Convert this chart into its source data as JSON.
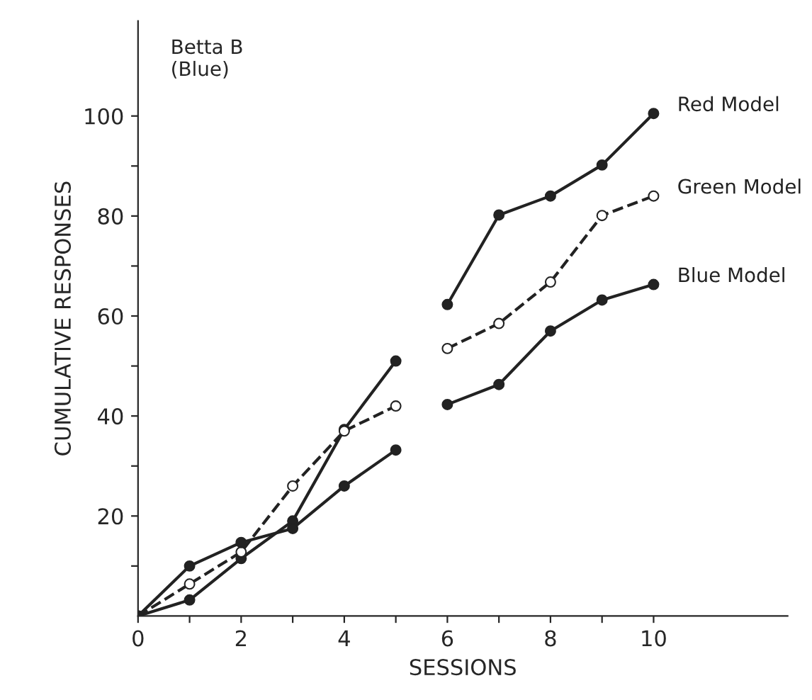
{
  "chart_data": {
    "type": "line",
    "title": "Betta B\n(Blue)",
    "xlabel": "SESSIONS",
    "ylabel": "CUMULATIVE RESPONSES",
    "series": [
      {
        "color": "#222222",
        "line_style": "solid",
        "marker": "circle",
        "x": [
          0,
          1,
          2,
          3,
          4,
          5
        ],
        "values": [
          0,
          3.2,
          11.5,
          19,
          37.3,
          51
        ]
      },
      {
        "color": "#222222",
        "line_style": "dashed",
        "marker": "circle",
        "x": [
          0,
          1,
          2,
          3,
          4,
          5
        ],
        "values": [
          0,
          6.4,
          12.8,
          26,
          37,
          42
        ]
      },
      {
        "color": "#222222",
        "line_style": "solid",
        "marker": "circle",
        "x": [
          0,
          1,
          2,
          3,
          4,
          5
        ],
        "values": [
          0,
          10,
          14.7,
          17.5,
          26,
          33.2
        ]
      },
      {
        "name": "Red Model",
        "color": "#222222",
        "line_style": "solid",
        "marker": "circle",
        "x": [
          6,
          7,
          8,
          9,
          10
        ],
        "values": [
          62.3,
          80.2,
          84,
          90.2,
          100.5
        ]
      },
      {
        "name": "Green Model",
        "color": "#222222",
        "line_style": "dashed",
        "marker": "circle",
        "x": [
          6,
          7,
          8,
          9,
          10
        ],
        "values": [
          53.5,
          58.5,
          66.8,
          80.1,
          84
        ]
      },
      {
        "name": "Blue Model",
        "color": "#222222",
        "line_style": "solid",
        "marker": "circle",
        "x": [
          6,
          7,
          8,
          9,
          10
        ],
        "values": [
          42.3,
          46.3,
          57,
          63.2,
          66.3
        ]
      }
    ],
    "xlim": [
      0,
      12.6
    ],
    "ylim": [
      0,
      119
    ],
    "xticks": [
      0,
      {
        "value": 1,
        "label": null
      },
      2,
      {
        "value": 3,
        "label": null
      },
      4,
      {
        "value": 5,
        "label": null
      },
      6,
      {
        "value": 7,
        "label": null
      },
      8,
      {
        "value": 9,
        "label": null
      },
      10
    ],
    "yticks": [
      {
        "value": 10,
        "label": null
      },
      20,
      {
        "value": 30,
        "label": null
      },
      40,
      {
        "value": 50,
        "label": null
      },
      60,
      {
        "value": 70,
        "label": null
      },
      80,
      {
        "value": 90,
        "label": null
      },
      100
    ],
    "grid": false,
    "legend": false
  }
}
